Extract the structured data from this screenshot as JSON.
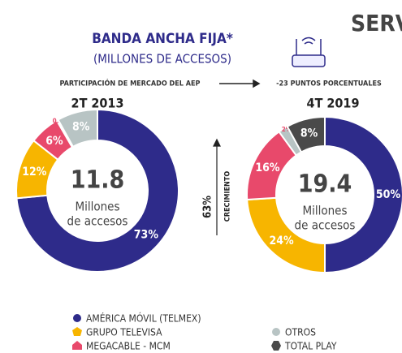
{
  "header": "SERV",
  "title": "BANDA ANCHA FIJA*",
  "subtitle": "(MILLONES DE ACCESOS)",
  "left_note": "PARTICIPACIÓN DE MERCADO DEL AEP",
  "right_note": "-23 PUNTOS PORCENTUALES",
  "growth_value": "63%",
  "growth_label": "CRECIMIENTO",
  "chart_data": [
    {
      "type": "pie",
      "title": "2T 2013",
      "center_value": "11.8",
      "center_label": [
        "Millones",
        "de accesos"
      ],
      "categories": [
        "AMÉRICA MÓVIL (TELMEX)",
        "GRUPO TELEVISA",
        "MEGACABLE - MCM",
        "TOTAL PLAY",
        "OTROS"
      ],
      "values": [
        73,
        12,
        6,
        0.3,
        8
      ],
      "value_labels": [
        "73%",
        "12%",
        "6%",
        "0.3%",
        "8%"
      ],
      "colors": [
        "#2e2b8a",
        "#f7b500",
        "#e8496b",
        "#4a4a4a",
        "#b8c4c4"
      ]
    },
    {
      "type": "pie",
      "title": "4T 2019",
      "center_value": "19.4",
      "center_label": [
        "Millones",
        "de accesos"
      ],
      "values": [
        50,
        24,
        16,
        2,
        8
      ],
      "value_labels": [
        "50%",
        "24%",
        "16%",
        "2%",
        "8%"
      ],
      "colors": [
        "#2e2b8a",
        "#f7b500",
        "#e8496b",
        "#b8c4c4",
        "#4a4a4a"
      ]
    }
  ]
}
